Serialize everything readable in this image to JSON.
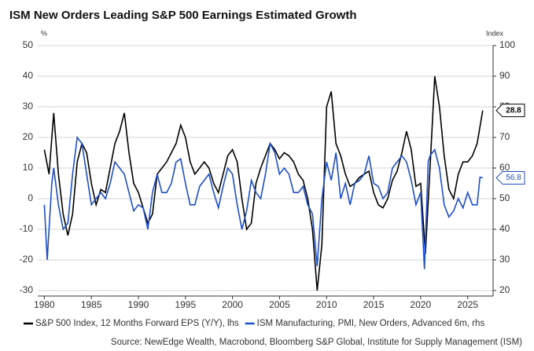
{
  "chart_data": {
    "type": "line",
    "title": "ISM New Orders Leading S&P 500 Earnings Estimated Growth",
    "y_label": "%",
    "y2_label": "Index",
    "source": "Source: NewEdge Wealth, Macrobond, Bloomberg S&P Global, Institute for Supply Management (ISM)",
    "xlim": [
      1979.3,
      2027.7
    ],
    "xticks": [
      1980,
      1985,
      1990,
      1995,
      2000,
      2005,
      2010,
      2015,
      2020,
      2025
    ],
    "ylim": [
      -31.8,
      50
    ],
    "yticks": [
      -30,
      -20,
      -10,
      0,
      10,
      20,
      30,
      40,
      50
    ],
    "y2lim": [
      18.2,
      100
    ],
    "y2ticks": [
      20,
      30,
      40,
      50,
      60,
      70,
      80,
      90,
      100
    ],
    "grid": true,
    "series": [
      {
        "name": "S&P 500 Index, 12 Months Forward EPS (Y/Y), lhs",
        "color": "#000000",
        "x": [
          1980,
          1980.5,
          1981,
          1981.5,
          1982,
          1982.5,
          1983,
          1983.5,
          1984,
          1984.5,
          1985,
          1985.5,
          1986,
          1986.5,
          1987,
          1987.5,
          1988,
          1988.5,
          1989,
          1989.5,
          1990,
          1990.5,
          1991,
          1991.5,
          1992,
          1992.5,
          1993,
          1993.5,
          1994,
          1994.5,
          1995,
          1995.5,
          1996,
          1996.5,
          1997,
          1997.5,
          1998,
          1998.5,
          1999,
          1999.5,
          2000,
          2000.5,
          2001,
          2001.5,
          2002,
          2002.5,
          2003,
          2003.5,
          2004,
          2004.5,
          2005,
          2005.5,
          2006,
          2006.5,
          2007,
          2007.5,
          2008,
          2008.5,
          2009,
          2009.5,
          2010,
          2010.5,
          2011,
          2011.5,
          2012,
          2012.5,
          2013,
          2013.5,
          2014,
          2014.5,
          2015,
          2015.5,
          2016,
          2016.5,
          2017,
          2017.5,
          2018,
          2018.5,
          2019,
          2019.5,
          2020,
          2020.5,
          2021,
          2021.5,
          2022,
          2022.5,
          2023,
          2023.5,
          2024,
          2024.5,
          2025,
          2025.5,
          2026,
          2026.6
        ],
        "values": [
          16,
          8,
          28,
          8,
          -5,
          -12,
          -5,
          12,
          18,
          15,
          5,
          -2,
          3,
          2,
          10,
          18,
          22,
          28,
          15,
          5,
          2,
          -3,
          -8,
          -5,
          8,
          10,
          12,
          15,
          18,
          24,
          20,
          12,
          8,
          10,
          12,
          10,
          5,
          2,
          8,
          14,
          16,
          12,
          0,
          -10,
          -8,
          5,
          10,
          14,
          18,
          16,
          13,
          15,
          14,
          12,
          8,
          6,
          0,
          -10,
          -30,
          -15,
          30,
          35,
          18,
          14,
          8,
          4,
          5,
          7,
          8,
          9,
          2,
          -2,
          -3,
          0,
          6,
          9,
          15,
          22,
          16,
          4,
          5,
          -18,
          10,
          40,
          30,
          14,
          3,
          0,
          8,
          12,
          12,
          14,
          18,
          28.8
        ]
      },
      {
        "name": "ISM Manufacturing, PMI, New Orders, Advanced 6m, rhs",
        "color": "#1f4fc4",
        "axis": "y2",
        "x": [
          1980,
          1980.3,
          1980.8,
          1981,
          1981.5,
          1982,
          1982.5,
          1983,
          1983.5,
          1984,
          1984.5,
          1985,
          1985.5,
          1986,
          1986.5,
          1987,
          1987.5,
          1988,
          1988.5,
          1989,
          1989.5,
          1990,
          1990.5,
          1991,
          1991.5,
          1992,
          1992.5,
          1993,
          1993.5,
          1994,
          1994.5,
          1995,
          1995.5,
          1996,
          1996.5,
          1997,
          1997.5,
          1998,
          1998.5,
          1999,
          1999.5,
          2000,
          2000.5,
          2001,
          2001.5,
          2002,
          2002.5,
          2003,
          2003.5,
          2004,
          2004.5,
          2005,
          2005.5,
          2006,
          2006.5,
          2007,
          2007.5,
          2008,
          2008.5,
          2009,
          2009.5,
          2010,
          2010.5,
          2011,
          2011.5,
          2012,
          2012.5,
          2013,
          2013.5,
          2014,
          2014.5,
          2015,
          2015.5,
          2016,
          2016.5,
          2017,
          2017.5,
          2018,
          2018.5,
          2019,
          2019.5,
          2020,
          2020.4,
          2020.8,
          2021,
          2021.5,
          2022,
          2022.5,
          2023,
          2023.5,
          2024,
          2024.5,
          2025,
          2025.5,
          2026,
          2026.3,
          2026.6
        ],
        "values": [
          48,
          30,
          55,
          60,
          48,
          40,
          42,
          58,
          70,
          68,
          58,
          48,
          50,
          52,
          50,
          55,
          62,
          60,
          58,
          52,
          46,
          48,
          47,
          40,
          52,
          58,
          52,
          52,
          55,
          62,
          63,
          55,
          48,
          48,
          54,
          56,
          58,
          52,
          47,
          54,
          60,
          58,
          48,
          40,
          46,
          56,
          52,
          50,
          58,
          68,
          65,
          58,
          60,
          58,
          52,
          52,
          54,
          48,
          45,
          28,
          50,
          62,
          56,
          65,
          50,
          55,
          48,
          55,
          56,
          58,
          64,
          55,
          54,
          50,
          52,
          60,
          62,
          64,
          62,
          56,
          48,
          52,
          27,
          62,
          64,
          66,
          60,
          48,
          44,
          46,
          50,
          47,
          52,
          48,
          48,
          57,
          56.8
        ]
      }
    ]
  }
}
